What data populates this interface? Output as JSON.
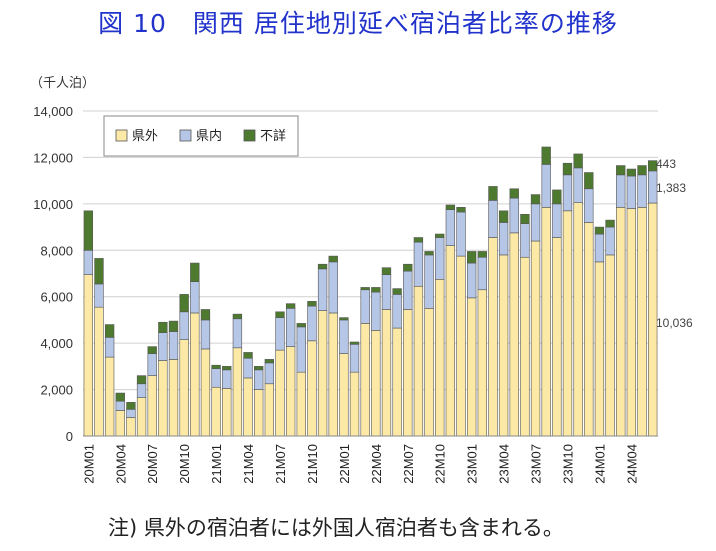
{
  "title": "図 10　関西 居住地別延べ宿泊者比率の推移",
  "unit_label": "（千人泊）",
  "footnote": "注) 県外の宿泊者には外国人宿泊者も含まれる。",
  "colors": {
    "prefecture_out": "#fde9a6",
    "prefecture_in": "#b5c6e6",
    "unknown": "#4e7a2f"
  },
  "chart_data": {
    "type": "bar",
    "stacked": true,
    "ylim": [
      0,
      14000
    ],
    "yticks": [
      0,
      2000,
      4000,
      6000,
      8000,
      10000,
      12000,
      14000
    ],
    "ytick_labels": [
      "0",
      "2,000",
      "4,000",
      "6,000",
      "8,000",
      "10,000",
      "12,000",
      "14,000"
    ],
    "grid": true,
    "legend_position": "top-left",
    "categories": [
      "20M01",
      "20M02",
      "20M03",
      "20M04",
      "20M05",
      "20M06",
      "20M07",
      "20M08",
      "20M09",
      "20M10",
      "20M11",
      "20M12",
      "21M01",
      "21M02",
      "21M03",
      "21M04",
      "21M05",
      "21M06",
      "21M07",
      "21M08",
      "21M09",
      "21M10",
      "21M11",
      "21M12",
      "22M01",
      "22M02",
      "22M03",
      "22M04",
      "22M05",
      "22M06",
      "22M07",
      "22M08",
      "22M09",
      "22M10",
      "22M11",
      "22M12",
      "23M01",
      "23M02",
      "23M03",
      "23M04",
      "23M05",
      "23M06",
      "23M07",
      "23M08",
      "23M09",
      "23M10",
      "23M11",
      "23M12",
      "24M01",
      "24M02",
      "24M03",
      "24M04",
      "24M05",
      "24M06"
    ],
    "x_tick_labels": [
      "20M01",
      "20M04",
      "20M07",
      "20M10",
      "21M01",
      "21M04",
      "21M07",
      "21M10",
      "22M01",
      "22M04",
      "22M07",
      "22M10",
      "23M01",
      "23M04",
      "23M07",
      "23M10",
      "24M01",
      "24M04"
    ],
    "x_tick_step": 3,
    "series": [
      {
        "name": "県外",
        "color_key": "prefecture_out",
        "values": [
          6950,
          5550,
          3400,
          1100,
          800,
          1650,
          2600,
          3250,
          3300,
          4150,
          5300,
          3750,
          2100,
          2050,
          3800,
          2500,
          2000,
          2250,
          3700,
          3850,
          2750,
          4100,
          5400,
          5300,
          3550,
          2750,
          4850,
          4550,
          5450,
          4650,
          5450,
          6450,
          5500,
          6750,
          8200,
          7750,
          5950,
          6300,
          8550,
          7800,
          8750,
          7700,
          8400,
          9850,
          8550,
          9700,
          10050,
          9200,
          7500,
          7800,
          9850,
          9800,
          9850,
          10036
        ]
      },
      {
        "name": "県内",
        "color_key": "prefecture_in",
        "values": [
          1050,
          1000,
          850,
          400,
          350,
          600,
          950,
          1200,
          1200,
          1200,
          1350,
          1250,
          800,
          800,
          1250,
          850,
          850,
          900,
          1400,
          1650,
          1950,
          1500,
          1800,
          2200,
          1450,
          1200,
          1450,
          1650,
          1500,
          1450,
          1650,
          1900,
          2300,
          1800,
          1550,
          1900,
          1500,
          1400,
          1600,
          1400,
          1500,
          1450,
          1600,
          1850,
          1450,
          1550,
          1500,
          1450,
          1200,
          1200,
          1400,
          1400,
          1400,
          1383
        ]
      },
      {
        "name": "不詳",
        "color_key": "unknown",
        "values": [
          1700,
          1100,
          550,
          350,
          300,
          350,
          300,
          450,
          450,
          750,
          800,
          450,
          150,
          150,
          200,
          250,
          150,
          150,
          250,
          200,
          150,
          200,
          200,
          250,
          100,
          100,
          100,
          200,
          300,
          250,
          300,
          200,
          150,
          150,
          200,
          200,
          500,
          250,
          600,
          500,
          400,
          400,
          400,
          750,
          600,
          500,
          600,
          700,
          300,
          300,
          400,
          300,
          400,
          443
        ]
      }
    ],
    "annotations": [
      "443",
      "1,383",
      "10,036"
    ]
  }
}
